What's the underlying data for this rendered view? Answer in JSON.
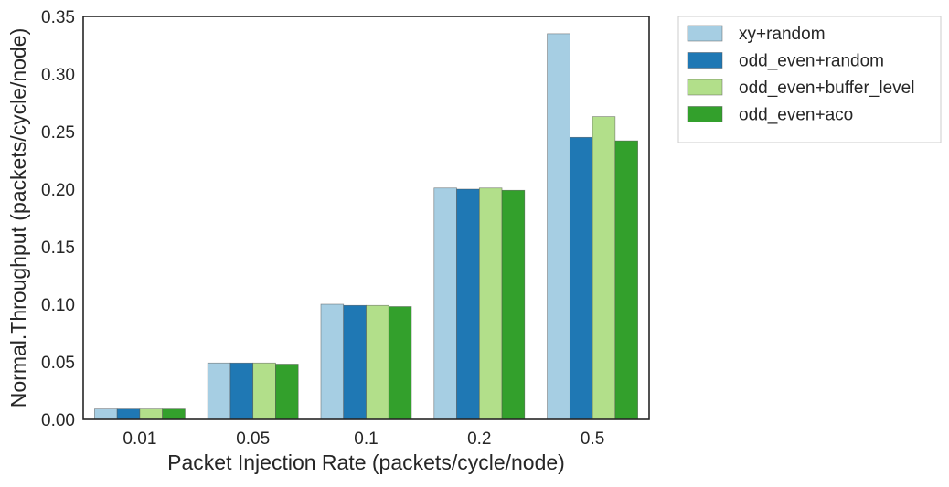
{
  "chart_data": {
    "type": "bar",
    "title": "",
    "xlabel": "Packet Injection Rate (packets/cycle/node)",
    "ylabel": "Normal.Throughput (packets/cycle/node)",
    "categories": [
      "0.01",
      "0.05",
      "0.1",
      "0.2",
      "0.5"
    ],
    "ylim": [
      0,
      0.35
    ],
    "yticks": [
      "0.00",
      "0.05",
      "0.10",
      "0.15",
      "0.20",
      "0.25",
      "0.30",
      "0.35"
    ],
    "grid": false,
    "legend_position": "outside-top-right",
    "series": [
      {
        "name": "xy+random",
        "color": "#a6cee3",
        "values": [
          0.009,
          0.049,
          0.1,
          0.201,
          0.335
        ]
      },
      {
        "name": "odd_even+random",
        "color": "#1f78b4",
        "values": [
          0.009,
          0.049,
          0.099,
          0.2,
          0.245
        ]
      },
      {
        "name": "odd_even+buffer_level",
        "color": "#b2df8a",
        "values": [
          0.009,
          0.049,
          0.099,
          0.201,
          0.263
        ]
      },
      {
        "name": "odd_even+aco",
        "color": "#33a02c",
        "values": [
          0.009,
          0.048,
          0.098,
          0.199,
          0.242
        ]
      }
    ]
  }
}
